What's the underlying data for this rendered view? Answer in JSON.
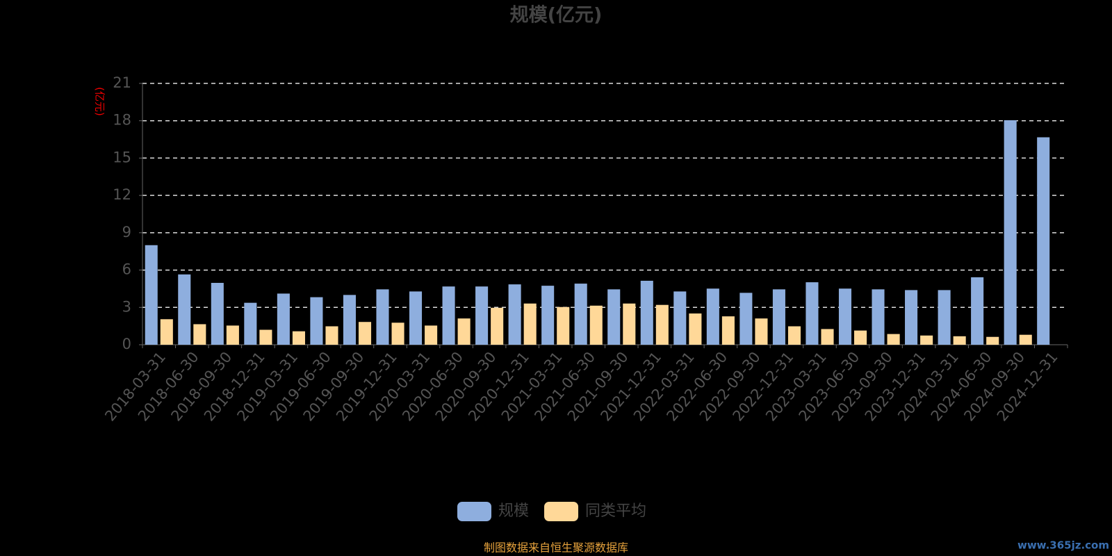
{
  "chart_data": {
    "type": "bar",
    "title": "规模(亿元)",
    "y_axis_label": "(亿元)",
    "categories": [
      "2018-03-31",
      "2018-06-30",
      "2018-09-30",
      "2018-12-31",
      "2019-03-31",
      "2019-06-30",
      "2019-09-30",
      "2019-12-31",
      "2020-03-31",
      "2020-06-30",
      "2020-09-30",
      "2020-12-31",
      "2021-03-31",
      "2021-06-30",
      "2021-09-30",
      "2021-12-31",
      "2022-03-31",
      "2022-06-30",
      "2022-09-30",
      "2022-12-31",
      "2023-03-31",
      "2023-06-30",
      "2023-09-30",
      "2023-12-31",
      "2024-03-31",
      "2024-06-30",
      "2024-09-30",
      "2024-12-31"
    ],
    "series": [
      {
        "name": "规模",
        "color": "#8eaede",
        "values": [
          8.0,
          5.65,
          4.97,
          3.37,
          4.11,
          3.82,
          4.0,
          4.45,
          4.28,
          4.68,
          4.68,
          4.85,
          4.74,
          4.91,
          4.45,
          5.14,
          4.28,
          4.51,
          4.17,
          4.45,
          5.02,
          4.51,
          4.45,
          4.39,
          4.39,
          5.42,
          18.04,
          16.67
        ]
      },
      {
        "name": "同类平均",
        "color": "#ffd898",
        "values": [
          2.05,
          1.65,
          1.54,
          1.2,
          1.08,
          1.48,
          1.83,
          1.77,
          1.54,
          2.11,
          2.97,
          3.31,
          3.03,
          3.14,
          3.31,
          3.2,
          2.51,
          2.28,
          2.11,
          1.48,
          1.26,
          1.14,
          0.86,
          0.74,
          0.68,
          0.63,
          0.8,
          null
        ]
      }
    ],
    "ylim": [
      0,
      21
    ],
    "yticks": [
      0,
      3,
      6,
      9,
      12,
      15,
      18,
      21
    ],
    "grid": true,
    "legend": "bottom",
    "source": "制图数据来自恒生聚源数据库",
    "watermark": "www.365jz.com"
  }
}
